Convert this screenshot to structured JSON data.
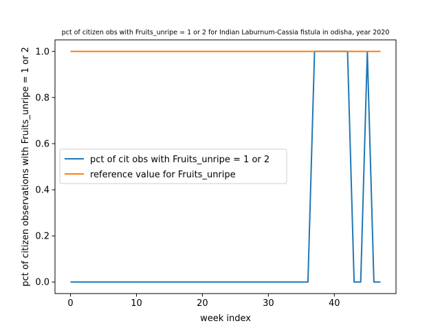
{
  "chart_data": {
    "type": "line",
    "title": "pct of citizen obs with Fruits_unripe = 1 or 2 for Indian Laburnum-Cassia fistula in odisha, year 2020",
    "xlabel": "week index",
    "ylabel": "pct of citizen observations with Fruits_unripe = 1 or 2",
    "xlim": [
      -2.35,
      49.35
    ],
    "ylim": [
      -0.05,
      1.05
    ],
    "xticks": [
      0,
      10,
      20,
      30,
      40
    ],
    "yticks": [
      0.0,
      0.2,
      0.4,
      0.6,
      0.8,
      1.0
    ],
    "xtick_labels": [
      "0",
      "10",
      "20",
      "30",
      "40"
    ],
    "ytick_labels": [
      "0.0",
      "0.2",
      "0.4",
      "0.6",
      "0.8",
      "1.0"
    ],
    "grid": false,
    "legend_position": "center-left",
    "series": [
      {
        "name": "pct of cit obs with Fruits_unripe = 1 or 2",
        "color": "#1f77b4",
        "x": [
          0,
          1,
          2,
          3,
          4,
          5,
          6,
          7,
          8,
          9,
          10,
          11,
          12,
          13,
          14,
          15,
          16,
          17,
          18,
          19,
          20,
          21,
          22,
          23,
          24,
          25,
          26,
          27,
          28,
          29,
          30,
          31,
          32,
          33,
          34,
          35,
          36,
          37,
          38,
          39,
          40,
          41,
          42,
          43,
          44,
          45,
          46,
          47
        ],
        "values": [
          0,
          0,
          0,
          0,
          0,
          0,
          0,
          0,
          0,
          0,
          0,
          0,
          0,
          0,
          0,
          0,
          0,
          0,
          0,
          0,
          0,
          0,
          0,
          0,
          0,
          0,
          0,
          0,
          0,
          0,
          0,
          0,
          0,
          0,
          0,
          0,
          0,
          1,
          1,
          1,
          1,
          1,
          1,
          0,
          0,
          1,
          0,
          0
        ]
      },
      {
        "name": "reference value for Fruits_unripe",
        "color": "#ff7f0e",
        "x": [
          0,
          1,
          2,
          3,
          4,
          5,
          6,
          7,
          8,
          9,
          10,
          11,
          12,
          13,
          14,
          15,
          16,
          17,
          18,
          19,
          20,
          21,
          22,
          23,
          24,
          25,
          26,
          27,
          28,
          29,
          30,
          31,
          32,
          33,
          34,
          35,
          36,
          37,
          38,
          39,
          40,
          41,
          42,
          43,
          44,
          45,
          46,
          47
        ],
        "values": [
          1,
          1,
          1,
          1,
          1,
          1,
          1,
          1,
          1,
          1,
          1,
          1,
          1,
          1,
          1,
          1,
          1,
          1,
          1,
          1,
          1,
          1,
          1,
          1,
          1,
          1,
          1,
          1,
          1,
          1,
          1,
          1,
          1,
          1,
          1,
          1,
          1,
          1,
          1,
          1,
          1,
          1,
          1,
          1,
          1,
          1,
          1,
          1
        ]
      }
    ]
  }
}
